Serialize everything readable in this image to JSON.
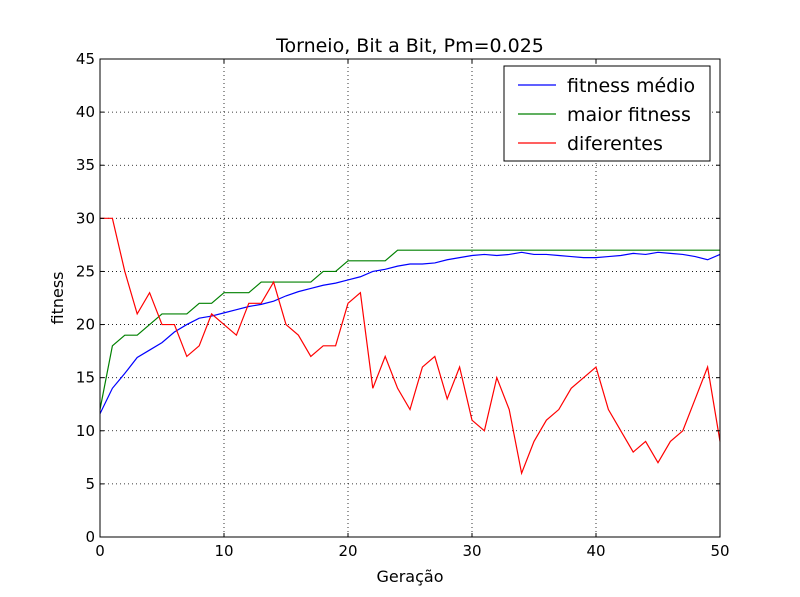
{
  "chart_data": {
    "type": "line",
    "title": "Torneio, Bit a Bit, Pm=0.025",
    "xlabel": "Geração",
    "ylabel": "fitness",
    "xlim": [
      0,
      50
    ],
    "ylim": [
      0,
      45
    ],
    "xticks": [
      0,
      10,
      20,
      30,
      40,
      50
    ],
    "yticks": [
      0,
      5,
      10,
      15,
      20,
      25,
      30,
      35,
      40,
      45
    ],
    "grid": true,
    "legend_position": "top-right",
    "x": [
      0,
      1,
      2,
      3,
      4,
      5,
      6,
      7,
      8,
      9,
      10,
      11,
      12,
      13,
      14,
      15,
      16,
      17,
      18,
      19,
      20,
      21,
      22,
      23,
      24,
      25,
      26,
      27,
      28,
      29,
      30,
      31,
      32,
      33,
      34,
      35,
      36,
      37,
      38,
      39,
      40,
      41,
      42,
      43,
      44,
      45,
      46,
      47,
      48,
      49,
      50
    ],
    "series": [
      {
        "name": "fitness médio",
        "color": "#0000ff",
        "values": [
          11.6,
          14.0,
          15.4,
          16.9,
          17.6,
          18.3,
          19.3,
          20.0,
          20.6,
          20.8,
          21.1,
          21.4,
          21.7,
          21.9,
          22.2,
          22.7,
          23.1,
          23.4,
          23.7,
          23.9,
          24.2,
          24.5,
          25.0,
          25.2,
          25.5,
          25.7,
          25.7,
          25.8,
          26.1,
          26.3,
          26.5,
          26.6,
          26.5,
          26.6,
          26.8,
          26.6,
          26.6,
          26.5,
          26.4,
          26.3,
          26.3,
          26.4,
          26.5,
          26.7,
          26.6,
          26.8,
          26.7,
          26.6,
          26.4,
          26.1,
          26.6
        ]
      },
      {
        "name": "maior fitness",
        "color": "#008000",
        "values": [
          12,
          18,
          19,
          19,
          20,
          21,
          21,
          21,
          22,
          22,
          23,
          23,
          23,
          24,
          24,
          24,
          24,
          24,
          25,
          25,
          26,
          26,
          26,
          26,
          27,
          27,
          27,
          27,
          27,
          27,
          27,
          27,
          27,
          27,
          27,
          27,
          27,
          27,
          27,
          27,
          27,
          27,
          27,
          27,
          27,
          27,
          27,
          27,
          27,
          27,
          27
        ]
      },
      {
        "name": "diferentes",
        "color": "#ff0000",
        "values": [
          30,
          30,
          25,
          21,
          23,
          20,
          20,
          17,
          18,
          21,
          20,
          19,
          22,
          22,
          24,
          20,
          19,
          17,
          18,
          18,
          22,
          23,
          14,
          17,
          14,
          12,
          16,
          17,
          13,
          16,
          11,
          10,
          15,
          12,
          6,
          9,
          11,
          12,
          14,
          15,
          16,
          12,
          10,
          8,
          9,
          7,
          9,
          10,
          13,
          16,
          9
        ]
      }
    ]
  }
}
